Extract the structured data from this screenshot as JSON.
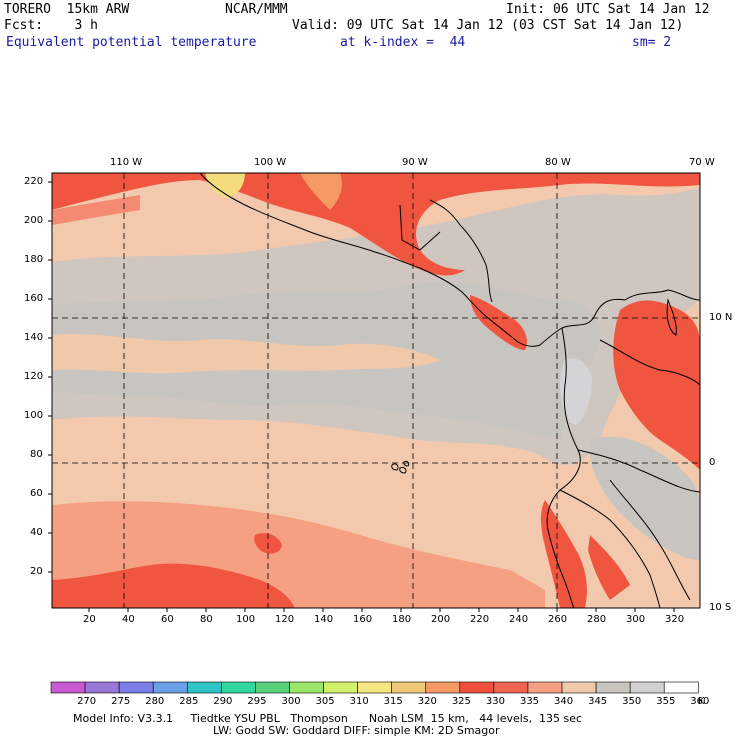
{
  "header": {
    "model": "TORERO  15km ARW",
    "org": "NCAR/MMM",
    "init": "Init: 06 UTC Sat 14 Jan 12",
    "fcst": "Fcst:    3 h",
    "valid": "Valid: 09 UTC Sat 14 Jan 12 (03 CST Sat 14 Jan 12)",
    "field": "Equivalent potential temperature",
    "level": "at k-index =  44",
    "smooth": "sm= 2"
  },
  "axes": {
    "top_lon": [
      "110 W",
      "100 W",
      "90 W",
      "80 W",
      "70 W"
    ],
    "right_lat": [
      "10 N",
      "0",
      "10 S"
    ],
    "left_y": [
      "220",
      "200",
      "180",
      "160",
      "140",
      "120",
      "100",
      "80",
      "60",
      "40",
      "20"
    ],
    "bottom_x": [
      "20",
      "40",
      "60",
      "80",
      "100",
      "120",
      "140",
      "160",
      "180",
      "200",
      "220",
      "240",
      "260",
      "280",
      "300",
      "320"
    ]
  },
  "colorbar": {
    "labels": [
      "270",
      "275",
      "280",
      "285",
      "290",
      "295",
      "300",
      "305",
      "310",
      "315",
      "320",
      "325",
      "330",
      "335",
      "340",
      "345",
      "350",
      "355",
      "360"
    ],
    "unit": "K",
    "colors": [
      "#c85ad2",
      "#9a78d8",
      "#7a7ee6",
      "#6aa0e6",
      "#30c4c4",
      "#30d8a0",
      "#5ad27a",
      "#9ae66a",
      "#d2f06a",
      "#f5e682",
      "#f0c87a",
      "#f59a64",
      "#f0503c",
      "#f06450",
      "#f5a082",
      "#f0c8aa",
      "#c8c4be",
      "#d2d0d0",
      "#ffffff"
    ]
  },
  "footer": {
    "line1": "Model Info: V3.3.1     Tiedtke YSU PBL   Thompson      Noah LSM  15 km,   44 levels,  135 sec",
    "line2": "LW: Godd SW: Goddard DIFF: simple KM: 2D Smagor"
  }
}
